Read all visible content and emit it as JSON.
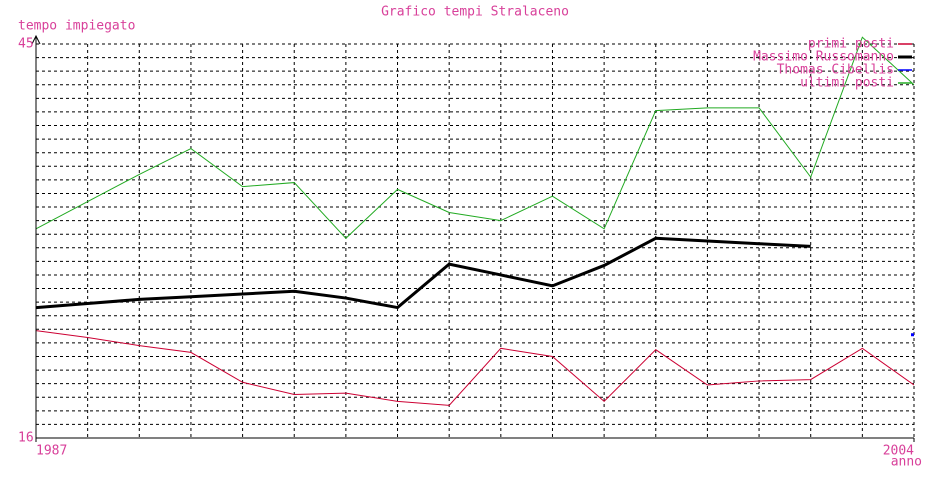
{
  "chart_data": {
    "type": "line",
    "title": "Grafico tempi Stralaceno",
    "y_label": "tempo impiegato",
    "x_label": "anno",
    "x": [
      1987,
      1988,
      1989,
      1990,
      1991,
      1992,
      1993,
      1994,
      1995,
      1996,
      1997,
      1998,
      1999,
      2000,
      2001,
      2002,
      2003,
      2004
    ],
    "xlim": [
      1987,
      2004
    ],
    "xticks": [
      1987,
      2004
    ],
    "ylim": [
      16,
      45
    ],
    "yticks": [
      16,
      45
    ],
    "grid": true,
    "legend": "top-right",
    "series": [
      {
        "name": "primi posti",
        "color": "#cc0033",
        "values": [
          23.9,
          23.4,
          22.8,
          22.3,
          20.1,
          19.2,
          19.3,
          18.7,
          18.4,
          22.6,
          22.0,
          18.7,
          22.5,
          19.9,
          20.2,
          20.3,
          22.6,
          19.9
        ]
      },
      {
        "name": "Massimo Russomanno",
        "color": "#000000",
        "values": [
          25.6,
          25.9,
          26.2,
          26.4,
          26.6,
          26.8,
          26.3,
          25.6,
          28.8,
          28.0,
          27.2,
          28.7,
          30.7,
          30.5,
          30.3,
          30.1,
          null,
          null
        ]
      },
      {
        "name": "Thomas Cibellis",
        "color": "#0000ff",
        "values": [
          null,
          null,
          null,
          null,
          null,
          null,
          null,
          null,
          null,
          null,
          null,
          null,
          null,
          null,
          null,
          null,
          null,
          23.6
        ]
      },
      {
        "name": "ultimi posti",
        "color": "#22aa22",
        "values": [
          31.4,
          33.4,
          35.4,
          37.3,
          34.5,
          34.8,
          30.7,
          34.3,
          32.6,
          32.0,
          33.8,
          31.4,
          40.1,
          40.3,
          40.3,
          35.2,
          45.5,
          42.0
        ]
      }
    ]
  }
}
